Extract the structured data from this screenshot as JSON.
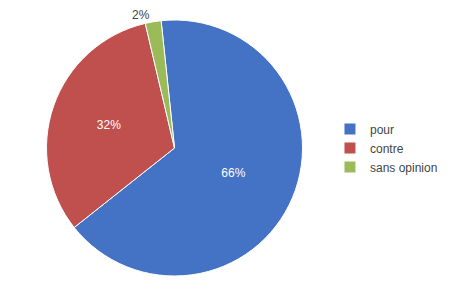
{
  "chart_data": {
    "type": "pie",
    "categories": [
      "pour",
      "contre",
      "sans opinion"
    ],
    "values": [
      66,
      32,
      2
    ],
    "value_labels": [
      "66%",
      "32%",
      "2%"
    ],
    "colors": [
      "#4472C4",
      "#C0504D",
      "#9BBB59"
    ],
    "data_labels": true,
    "legend": "right"
  }
}
